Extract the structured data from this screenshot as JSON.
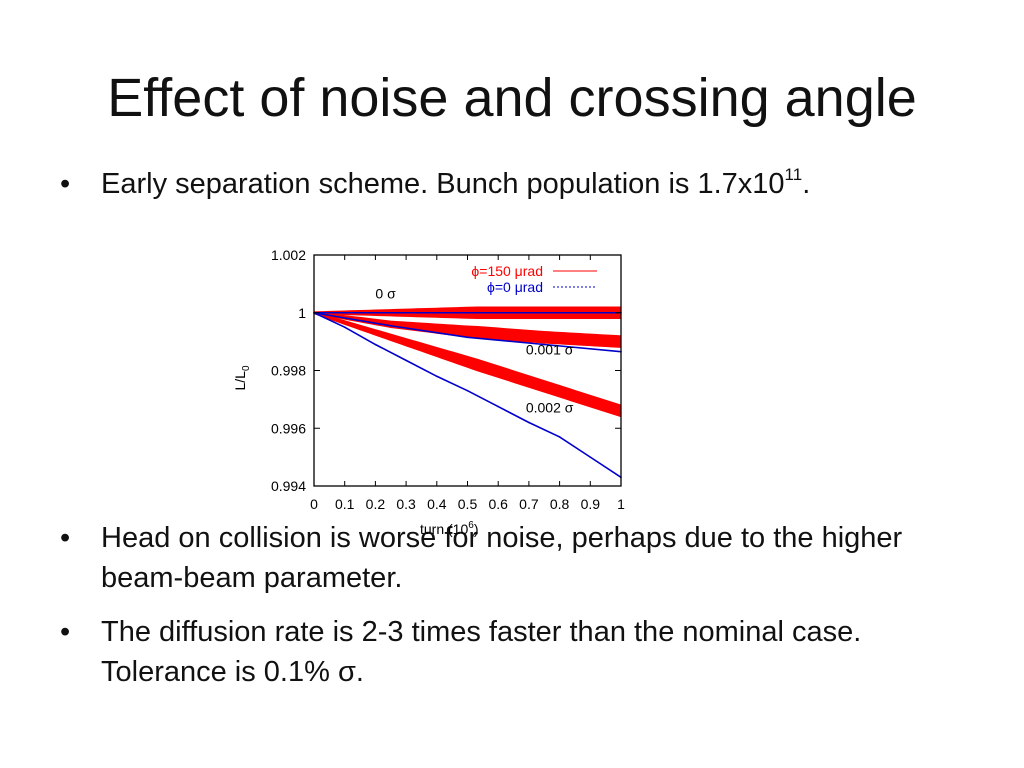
{
  "slide": {
    "title": "Effect of noise and crossing angle",
    "bullets": [
      {
        "text": "Early separation scheme. Bunch population is 1.7x10",
        "sup": "11",
        "suffix": "."
      },
      {
        "text": "Head on collision is worse for noise, perhaps due to the higher beam-beam parameter."
      },
      {
        "text": "The diffusion rate is 2-3 times faster than the nominal case. Tolerance is 0.1% ",
        "symbol": "σ",
        "suffix": "."
      }
    ],
    "bullet_char": "•"
  },
  "chart_data": {
    "type": "line",
    "xlabel": "turn (10",
    "xlabel_sup": "6",
    "xlabel_suffix": ")",
    "ylabel": "L/L",
    "ylabel_sub": "0",
    "xlim": [
      0,
      1
    ],
    "ylim": [
      0.994,
      1.002
    ],
    "xticks": [
      "0",
      "0.1",
      "0.2",
      "0.3",
      "0.4",
      "0.5",
      "0.6",
      "0.7",
      "0.8",
      "0.9",
      "1"
    ],
    "yticks": [
      "1.002",
      "1",
      "0.998",
      "0.996",
      "0.994"
    ],
    "legend": [
      {
        "name": "ϕ=150 μrad",
        "color": "#ff0000",
        "style": "solid"
      },
      {
        "name": "ϕ=0 μrad",
        "color": "#0000cc",
        "style": "dashed"
      }
    ],
    "legend_position": "top-right",
    "annotations": [
      {
        "text": "0 σ",
        "x": 0.2,
        "y": 1.0005
      },
      {
        "text": "0.001 σ",
        "x": 0.69,
        "y": 0.99855
      },
      {
        "text": "0.002 σ",
        "x": 0.69,
        "y": 0.99655
      }
    ],
    "series": [
      {
        "name": "ϕ=150 μrad, 0 σ",
        "color": "#ff0000",
        "band_halfwidth": 0.0002,
        "x": [
          0,
          0.25,
          0.5,
          0.75,
          1.0
        ],
        "y": [
          1.0,
          1.0,
          1.0,
          1.0,
          1.0
        ]
      },
      {
        "name": "ϕ=150 μrad, 0.001 σ",
        "color": "#ff0000",
        "band_halfwidth": 0.0002,
        "x": [
          0,
          0.25,
          0.5,
          0.75,
          1.0
        ],
        "y": [
          1.0,
          0.9996,
          0.99935,
          0.99915,
          0.999
        ]
      },
      {
        "name": "ϕ=150 μrad, 0.002 σ",
        "color": "#ff0000",
        "band_halfwidth": 0.0002,
        "x": [
          0,
          0.25,
          0.5,
          0.75,
          1.0
        ],
        "y": [
          1.0,
          0.99915,
          0.9983,
          0.99745,
          0.9966
        ]
      },
      {
        "name": "ϕ=0 μrad, 0 σ",
        "color": "#0000cc",
        "band_halfwidth": 0,
        "x": [
          0,
          0.25,
          0.5,
          0.75,
          1.0
        ],
        "y": [
          1.0,
          1.0,
          1.0,
          1.0,
          1.0
        ]
      },
      {
        "name": "ϕ=0 μrad, 0.001 σ",
        "color": "#0000cc",
        "band_halfwidth": 0,
        "x": [
          0,
          0.25,
          0.5,
          0.75,
          1.0
        ],
        "y": [
          1.0,
          0.99955,
          0.99915,
          0.9989,
          0.99865
        ]
      },
      {
        "name": "ϕ=0 μrad, 0.002 σ",
        "color": "#0000cc",
        "band_halfwidth": 0,
        "x": [
          0,
          0.1,
          0.2,
          0.3,
          0.4,
          0.5,
          0.6,
          0.7,
          0.8,
          0.9,
          1.0
        ],
        "y": [
          1.0,
          0.9995,
          0.9989,
          0.99835,
          0.9978,
          0.9973,
          0.99675,
          0.9962,
          0.9957,
          0.995,
          0.9943
        ]
      }
    ],
    "grid": false
  }
}
